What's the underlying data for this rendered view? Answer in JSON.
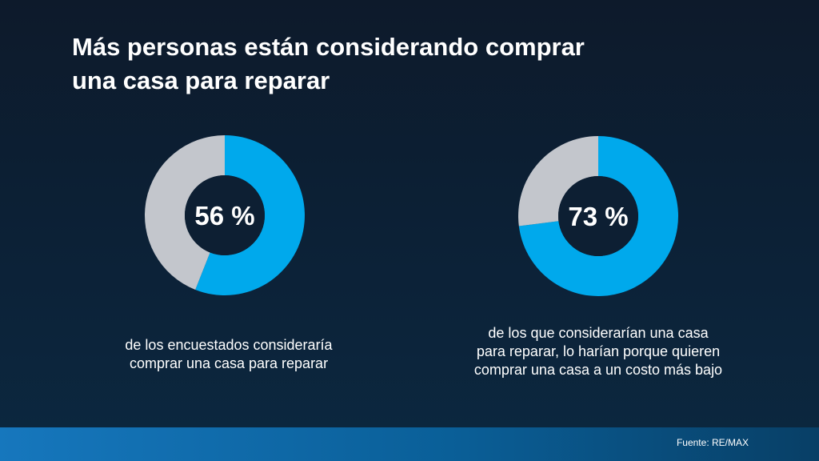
{
  "title_line1": "Más personas están considerando comprar",
  "title_line2": "una casa para reparar",
  "colors": {
    "highlight": "#00a9ec",
    "remainder": "#c3c6cc",
    "center": "#0d1f33"
  },
  "chart_data": [
    {
      "type": "pie",
      "style": "donut",
      "values": [
        56,
        44
      ],
      "label": "56 %",
      "caption": [
        "de los encuestados consideraría",
        "comprar una casa para reparar"
      ]
    },
    {
      "type": "pie",
      "style": "donut",
      "values": [
        73,
        27
      ],
      "label": "73 %",
      "caption": [
        "de los que considerarían una casa",
        "para reparar, lo harían porque quieren",
        "comprar una casa a un costo más bajo"
      ]
    }
  ],
  "source": "Fuente: RE/MAX"
}
